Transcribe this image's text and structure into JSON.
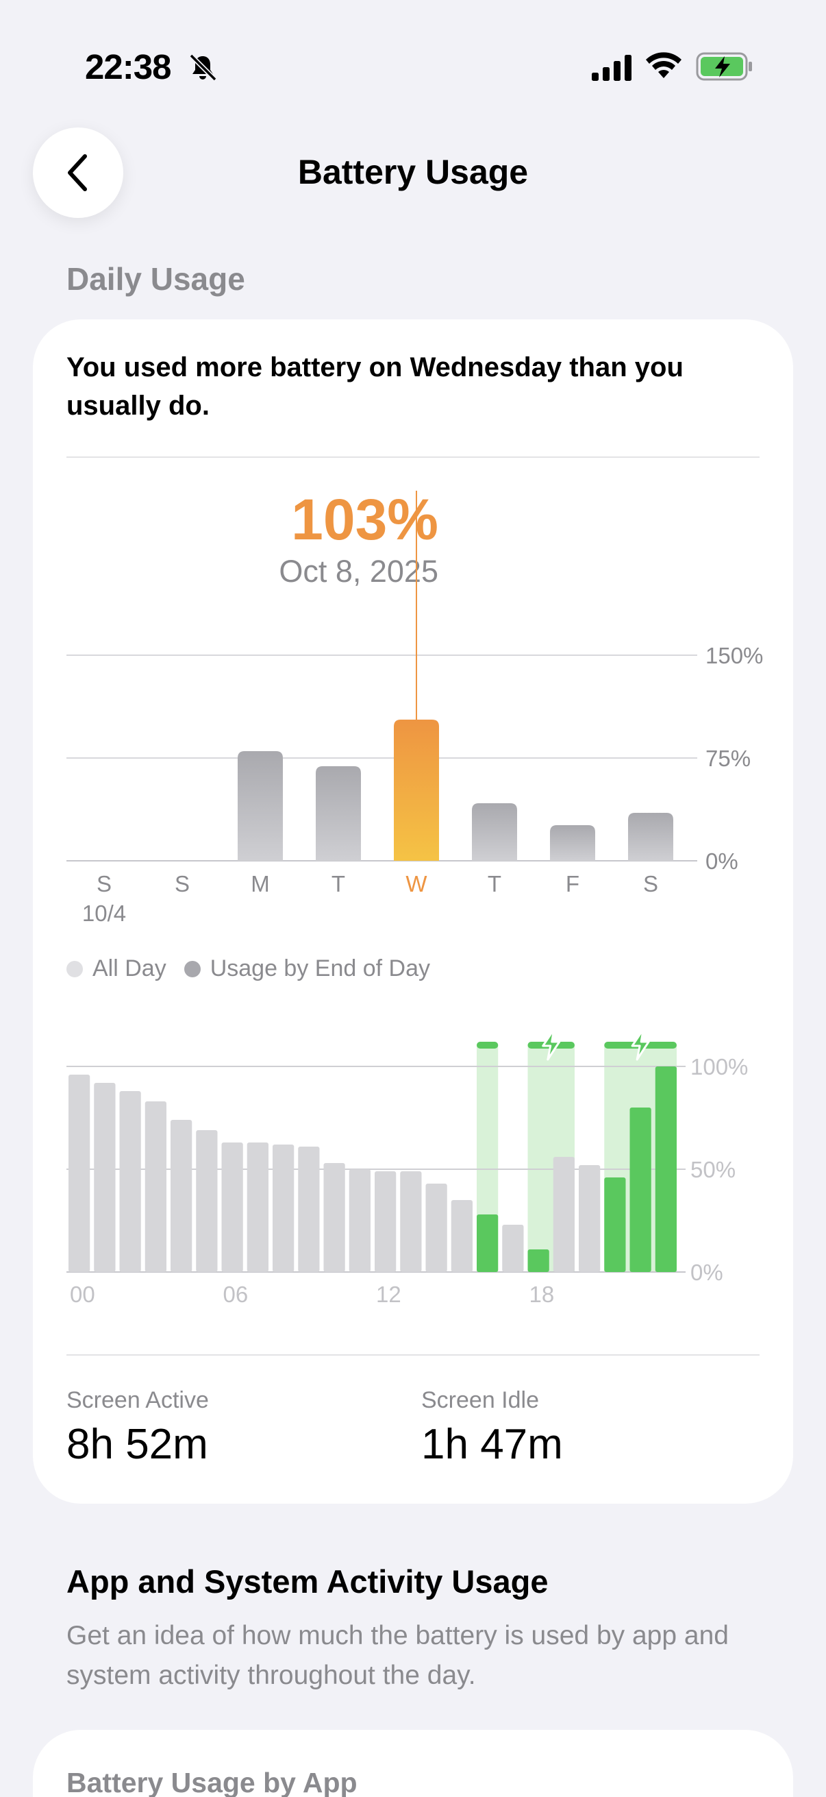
{
  "status_bar": {
    "time": "22:38",
    "icons": [
      "bell-slash-icon",
      "cellular-signal-icon",
      "wifi-icon",
      "battery-charging-icon"
    ]
  },
  "nav": {
    "back_icon": "chevron-left-icon",
    "title": "Battery Usage"
  },
  "daily_usage": {
    "section_label": "Daily Usage",
    "insight": "You used more battery on Wednesday than you usually do.",
    "callout": {
      "value": "103%",
      "date": "Oct 8, 2025"
    },
    "legend": [
      {
        "label": "All Day",
        "color": "#e0e0e3"
      },
      {
        "label": "Usage by End of Day",
        "color": "#a8a8ad"
      }
    ],
    "stats": [
      {
        "label": "Screen Active",
        "value": "8h 52m"
      },
      {
        "label": "Screen Idle",
        "value": "1h 47m"
      }
    ]
  },
  "colors": {
    "accent_orange": "#ee9542",
    "bar_gray": "#b3b3b8",
    "charge_green": "#5ac85e",
    "charge_band": "#d7f1d6",
    "hourly_gray": "#d6d6d9"
  },
  "chart_data": [
    {
      "type": "bar",
      "title": "",
      "categories": [
        "S",
        "S",
        "M",
        "T",
        "W",
        "T",
        "F",
        "S"
      ],
      "sublabels": [
        "10/4",
        "",
        "",
        "",
        "",
        "",
        "",
        ""
      ],
      "series": [
        {
          "values": [
            0,
            0,
            80,
            69,
            103,
            42,
            26,
            35
          ]
        }
      ],
      "highlight_index": 4,
      "yticks": [
        "0%",
        "75%",
        "150%"
      ],
      "ylim": [
        0,
        150
      ],
      "grid": true
    },
    {
      "type": "bar",
      "title": "",
      "categories": [
        "00",
        "01",
        "02",
        "03",
        "04",
        "05",
        "06",
        "07",
        "08",
        "09",
        "10",
        "11",
        "12",
        "13",
        "14",
        "15",
        "16",
        "17",
        "18",
        "19",
        "20",
        "21",
        "22",
        "23"
      ],
      "xtick_labels": [
        "00",
        "06",
        "12",
        "18"
      ],
      "values": [
        96,
        92,
        88,
        83,
        74,
        69,
        63,
        63,
        62,
        61,
        53,
        50,
        49,
        49,
        43,
        35,
        28,
        23,
        11,
        56,
        52,
        46,
        80,
        100
      ],
      "charging_hours": [
        16,
        18,
        21,
        22,
        23
      ],
      "charge_bands": [
        [
          16,
          16
        ],
        [
          18,
          19
        ],
        [
          21,
          23
        ]
      ],
      "charge_bolt_at": [
        [
          18,
          19
        ],
        [
          21,
          23
        ]
      ],
      "yticks": [
        "0%",
        "50%",
        "100%"
      ],
      "ylim": [
        0,
        100
      ],
      "grid": true
    }
  ],
  "app_activity": {
    "heading": "App and System Activity Usage",
    "description": "Get an idea of how much the battery is used by app and system activity throughout the day.",
    "card_title": "Battery Usage by App"
  }
}
